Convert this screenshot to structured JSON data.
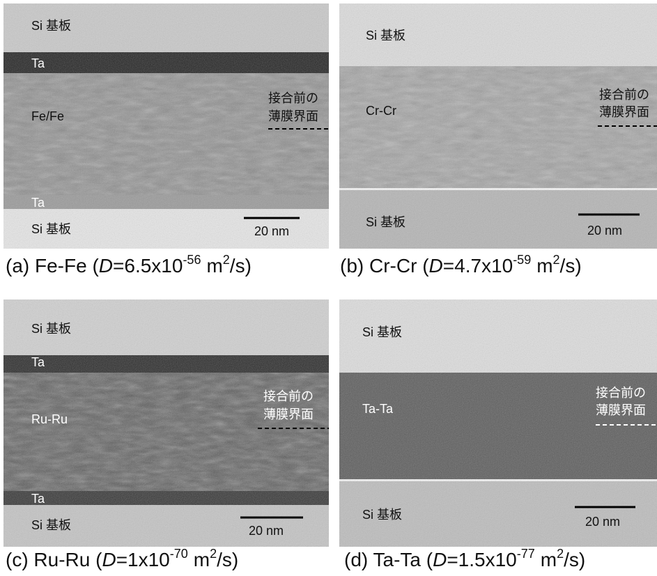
{
  "panels": [
    {
      "caption": {
        "prefix": "(a) Fe-Fe (",
        "var": "D",
        "mantissa": "=6.5x10",
        "exponent": "-56",
        "unit": "m",
        "unit_exp": "2",
        "suffix": "/s)"
      },
      "labels": {
        "substrate_top": "Si 基板",
        "layer_top": "Ta",
        "film": "Fe/Fe",
        "interface_line1": "接合前の",
        "interface_line2": "薄膜界面",
        "layer_bottom": "Ta",
        "substrate_bottom": "Si 基板",
        "scale_bar": "20 nm"
      }
    },
    {
      "caption": {
        "prefix": "(b) Cr-Cr (",
        "var": "D",
        "mantissa": "=4.7x10",
        "exponent": "-59",
        "unit": "m",
        "unit_exp": "2",
        "suffix": "/s)"
      },
      "labels": {
        "substrate_top": "Si 基板",
        "film": "Cr-Cr",
        "interface_line1": "接合前の",
        "interface_line2": "薄膜界面",
        "substrate_bottom": "Si 基板",
        "scale_bar": "20 nm"
      }
    },
    {
      "caption": {
        "prefix": "(c) Ru-Ru (",
        "var": "D",
        "mantissa": "=1x10",
        "exponent": "-70",
        "unit": "m",
        "unit_exp": "2",
        "suffix": "/s)"
      },
      "labels": {
        "substrate_top": "Si 基板",
        "layer_top": "Ta",
        "film": "Ru-Ru",
        "interface_line1": "接合前の",
        "interface_line2": "薄膜界面",
        "layer_bottom": "Ta",
        "substrate_bottom": "Si 基板",
        "scale_bar": "20 nm"
      }
    },
    {
      "caption": {
        "prefix": "(d) Ta-Ta (",
        "var": "D",
        "mantissa": "=1.5x10",
        "exponent": "-77",
        "unit": "m",
        "unit_exp": "2",
        "suffix": "/s)"
      },
      "labels": {
        "substrate_top": "Si 基板",
        "film": "Ta-Ta",
        "interface_line1": "接合前の",
        "interface_line2": "薄膜界面",
        "substrate_bottom": "Si 基板",
        "scale_bar": "20 nm"
      }
    }
  ]
}
